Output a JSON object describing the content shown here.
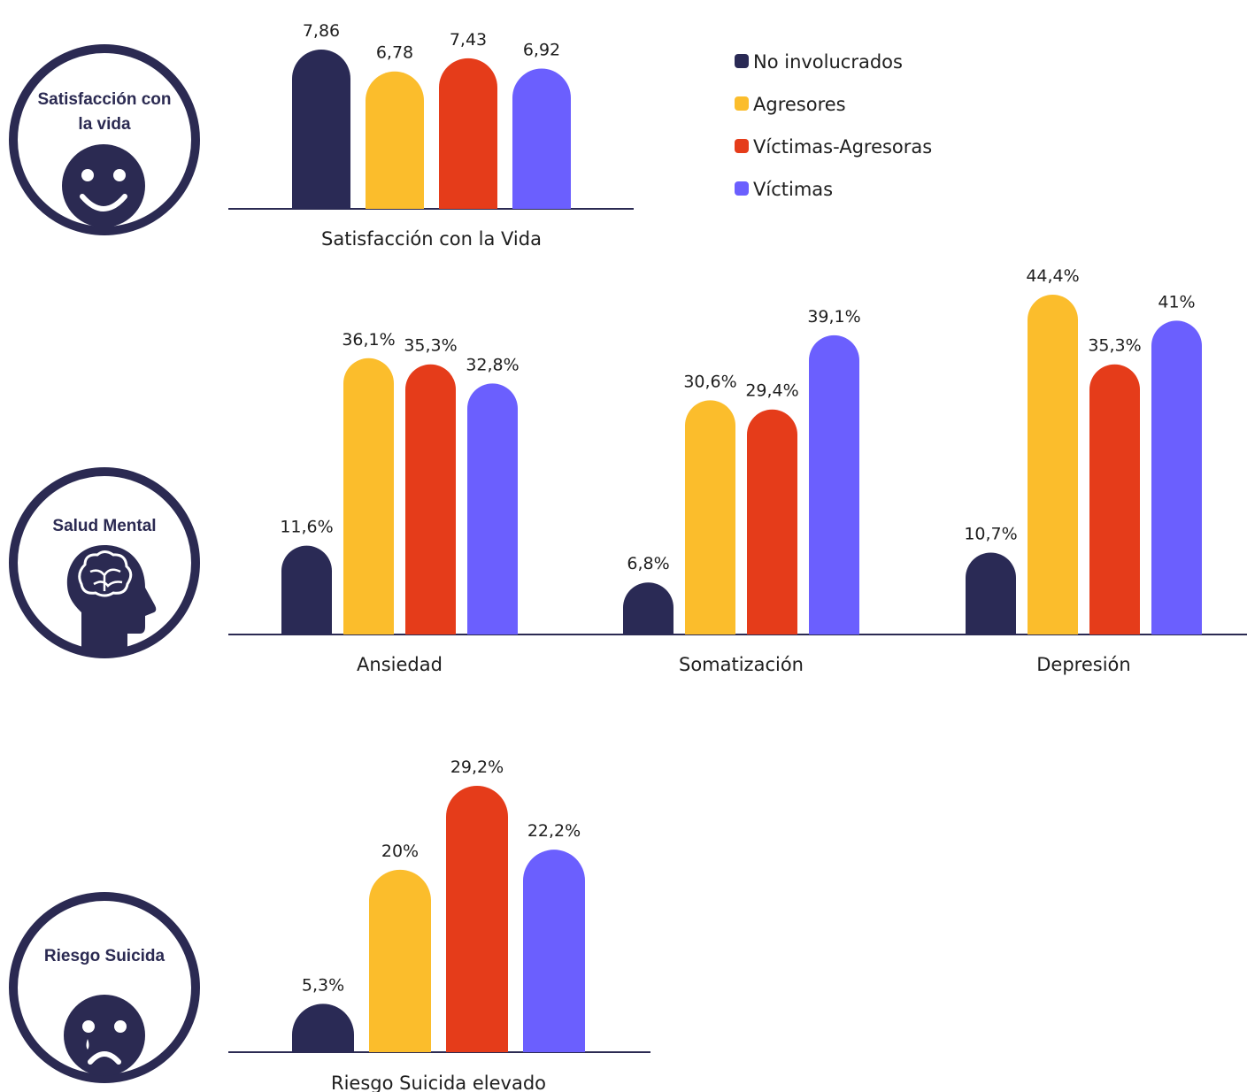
{
  "colors": {
    "no_involucrados": "#2a2a55",
    "agresores": "#fbbd2c",
    "victimas_agresoras": "#e53c1a",
    "victimas": "#6b5ffe",
    "icon": "#2b2a52"
  },
  "legend": [
    {
      "key": "no_involucrados",
      "label": "No involucrados"
    },
    {
      "key": "agresores",
      "label": "Agresores"
    },
    {
      "key": "victimas_agresoras",
      "label": "Víctimas-Agresoras"
    },
    {
      "key": "victimas",
      "label": "Víctimas"
    }
  ],
  "icons": [
    {
      "name": "smile-face-icon",
      "line1": "Satisfacción con",
      "line2": "la vida"
    },
    {
      "name": "brain-head-icon",
      "line1": "Salud Mental",
      "line2": ""
    },
    {
      "name": "sad-face-icon",
      "line1": "Riesgo Suicida",
      "line2": ""
    }
  ],
  "chart_data": [
    {
      "type": "bar",
      "categories": [
        "Satisfacción con la Vida"
      ],
      "series": [
        {
          "name": "No involucrados",
          "values": [
            7.86
          ],
          "labels": [
            "7,86"
          ]
        },
        {
          "name": "Agresores",
          "values": [
            6.78
          ],
          "labels": [
            "6,78"
          ]
        },
        {
          "name": "Víctimas-Agresoras",
          "values": [
            7.43
          ],
          "labels": [
            "7,43"
          ]
        },
        {
          "name": "Víctimas",
          "values": [
            6.92
          ],
          "labels": [
            "6,92"
          ]
        }
      ]
    },
    {
      "type": "bar",
      "categories": [
        "Ansiedad",
        "Somatización",
        "Depresión"
      ],
      "series": [
        {
          "name": "No involucrados",
          "values": [
            11.6,
            6.8,
            10.7
          ],
          "labels": [
            "11,6%",
            "6,8%",
            "10,7%"
          ]
        },
        {
          "name": "Agresores",
          "values": [
            36.1,
            30.6,
            44.4
          ],
          "labels": [
            "36,1%",
            "30,6%",
            "44,4%"
          ]
        },
        {
          "name": "Víctimas-Agresoras",
          "values": [
            35.3,
            29.4,
            35.3
          ],
          "labels": [
            "35,3%",
            "29,4%",
            "35,3%"
          ]
        },
        {
          "name": "Víctimas",
          "values": [
            32.8,
            39.1,
            41
          ],
          "labels": [
            "32,8%",
            "39,1%",
            "41%"
          ]
        }
      ]
    },
    {
      "type": "bar",
      "categories": [
        "Riesgo Suicida elevado"
      ],
      "series": [
        {
          "name": "No involucrados",
          "values": [
            5.3
          ],
          "labels": [
            "5,3%"
          ]
        },
        {
          "name": "Agresores",
          "values": [
            20
          ],
          "labels": [
            "20%"
          ]
        },
        {
          "name": "Víctimas-Agresoras",
          "values": [
            29.2
          ],
          "labels": [
            "29,2%"
          ]
        },
        {
          "name": "Víctimas",
          "values": [
            22.2
          ],
          "labels": [
            "22,2%"
          ]
        }
      ]
    }
  ]
}
